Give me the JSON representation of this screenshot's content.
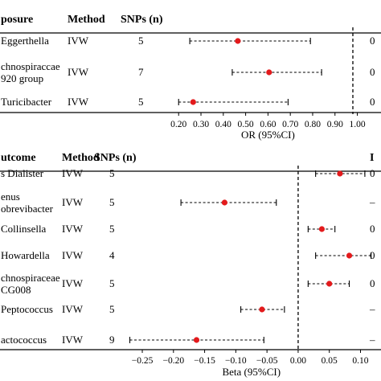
{
  "chart_data": [
    {
      "type": "forest",
      "headers": {
        "label": "posure",
        "method": "Method",
        "snps": "SNPs (n)",
        "right": ""
      },
      "xlabel": "OR (95%CI)",
      "xlim": [
        0.12,
        1.07
      ],
      "ref_line": 0.98,
      "ticks": [
        "0.20",
        "0.30",
        "0.40",
        "0.50",
        "0.60",
        "0.70",
        "0.80",
        "0.90",
        "1.00"
      ],
      "tick_values": [
        0.2,
        0.3,
        0.4,
        0.5,
        0.6,
        0.7,
        0.8,
        0.9,
        1.0
      ],
      "rows": [
        {
          "label": [
            "Eggerthella"
          ],
          "method": "IVW",
          "snps": "5",
          "est": 0.465,
          "lo": 0.25,
          "hi": 0.79,
          "right": "0"
        },
        {
          "label": [
            "chnospiraccae",
            "920 group"
          ],
          "method": "IVW",
          "snps": "7",
          "est": 0.605,
          "lo": 0.44,
          "hi": 0.84,
          "right": "0"
        },
        {
          "label": [
            "Turicibacter"
          ],
          "method": "IVW",
          "snps": "5",
          "est": 0.265,
          "lo": 0.2,
          "hi": 0.69,
          "right": "0"
        }
      ]
    },
    {
      "type": "forest",
      "headers": {
        "label": "utcome",
        "method": "Method",
        "snps": "SNPs (n)",
        "right": "I"
      },
      "xlabel": "Beta (95%CI)",
      "xlim": [
        -0.29,
        0.12
      ],
      "ref_line": 0.0,
      "ticks": [
        "−0.25",
        "−0.20",
        "−0.15",
        "−0.10",
        "−0.05",
        "0.00",
        "0.05",
        "0.10"
      ],
      "tick_values": [
        -0.25,
        -0.2,
        -0.15,
        -0.1,
        -0.05,
        0.0,
        0.05,
        0.1
      ],
      "rows": [
        {
          "label": [
            "s Dialister"
          ],
          "method": "IVW",
          "snps": "5",
          "est": 0.067,
          "lo": 0.028,
          "hi": 0.107,
          "right": "0"
        },
        {
          "label": [
            "enus",
            "obrevibacter"
          ],
          "method": "IVW",
          "snps": "5",
          "est": -0.118,
          "lo": -0.188,
          "hi": -0.035,
          "right": "–"
        },
        {
          "label": [
            "Collinsella"
          ],
          "method": "IVW",
          "snps": "5",
          "est": 0.038,
          "lo": 0.016,
          "hi": 0.059,
          "right": "0"
        },
        {
          "label": [
            "Howardella"
          ],
          "method": "IVW",
          "snps": "4",
          "est": 0.082,
          "lo": 0.028,
          "hi": 0.117,
          "right": "0"
        },
        {
          "label": [
            "chnospiraceae",
            "CG008"
          ],
          "method": "IVW",
          "snps": "5",
          "est": 0.05,
          "lo": 0.016,
          "hi": 0.082,
          "right": "0"
        },
        {
          "label": [
            "Peptococcus"
          ],
          "method": "IVW",
          "snps": "5",
          "est": -0.058,
          "lo": -0.092,
          "hi": -0.022,
          "right": "–"
        },
        {
          "label": [
            "actococcus"
          ],
          "method": "IVW",
          "snps": "9",
          "est": -0.163,
          "lo": -0.27,
          "hi": -0.055,
          "right": "–"
        }
      ]
    }
  ]
}
